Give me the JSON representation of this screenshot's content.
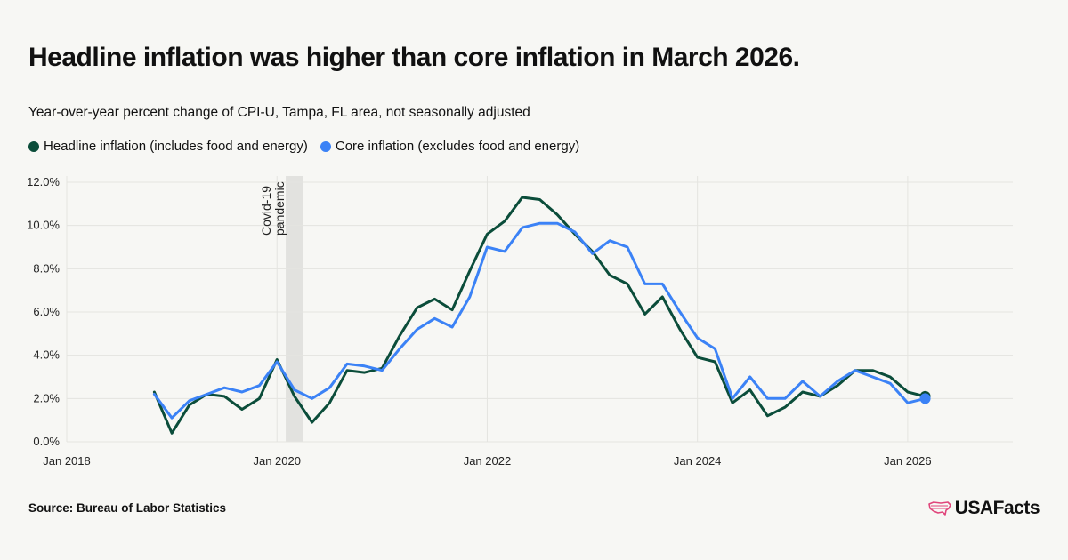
{
  "title": "Headline inflation was higher than core inflation in March 2026.",
  "subtitle": "Year-over-year percent change of CPI-U, Tampa, FL area, not seasonally adjusted",
  "source": "Source: Bureau of Labor Statistics",
  "logo_text": "USAFacts",
  "colors": {
    "headline": "#0b4d3a",
    "core": "#3b82f6",
    "grid": "#e4e4e0",
    "band": "#e2e2df",
    "axis_text": "#222222",
    "logo_icon": "#e0457b"
  },
  "chart_data": {
    "type": "line",
    "x_axis": {
      "type": "date",
      "range": [
        "2018-01",
        "2027-01"
      ],
      "ticks": [
        {
          "value": "2018-01",
          "label": "Jan 2018"
        },
        {
          "value": "2020-01",
          "label": "Jan 2020"
        },
        {
          "value": "2022-01",
          "label": "Jan 2022"
        },
        {
          "value": "2024-01",
          "label": "Jan 2024"
        },
        {
          "value": "2026-01",
          "label": "Jan 2026"
        }
      ]
    },
    "y_axis": {
      "range": [
        0,
        12
      ],
      "ticks": [
        {
          "value": 0,
          "label": "0.0%"
        },
        {
          "value": 2,
          "label": "2.0%"
        },
        {
          "value": 4,
          "label": "4.0%"
        },
        {
          "value": 6,
          "label": "6.0%"
        },
        {
          "value": 8,
          "label": "8.0%"
        },
        {
          "value": 10,
          "label": "10.0%"
        },
        {
          "value": 12,
          "label": "12.0%"
        }
      ]
    },
    "grid": true,
    "legend_placement": "top-left",
    "annotation": {
      "label_line1": "Covid-19",
      "label_line2": "pandemic",
      "band_start": "2020-02",
      "band_end": "2020-04"
    },
    "series": [
      {
        "name": "Headline inflation (includes food and energy)",
        "color": "#0b4d3a",
        "points": [
          [
            "2018-11",
            2.3
          ],
          [
            "2019-01",
            0.4
          ],
          [
            "2019-03",
            1.7
          ],
          [
            "2019-05",
            2.2
          ],
          [
            "2019-07",
            2.1
          ],
          [
            "2019-09",
            1.5
          ],
          [
            "2019-11",
            2.0
          ],
          [
            "2020-01",
            3.8
          ],
          [
            "2020-03",
            2.1
          ],
          [
            "2020-05",
            0.9
          ],
          [
            "2020-07",
            1.8
          ],
          [
            "2020-09",
            3.3
          ],
          [
            "2020-11",
            3.2
          ],
          [
            "2021-01",
            3.4
          ],
          [
            "2021-03",
            4.9
          ],
          [
            "2021-05",
            6.2
          ],
          [
            "2021-07",
            6.6
          ],
          [
            "2021-09",
            6.1
          ],
          [
            "2021-11",
            7.9
          ],
          [
            "2022-01",
            9.6
          ],
          [
            "2022-03",
            10.2
          ],
          [
            "2022-05",
            11.3
          ],
          [
            "2022-07",
            11.2
          ],
          [
            "2022-09",
            10.5
          ],
          [
            "2022-11",
            9.6
          ],
          [
            "2023-01",
            8.8
          ],
          [
            "2023-03",
            7.7
          ],
          [
            "2023-05",
            7.3
          ],
          [
            "2023-07",
            5.9
          ],
          [
            "2023-09",
            6.7
          ],
          [
            "2023-11",
            5.2
          ],
          [
            "2024-01",
            3.9
          ],
          [
            "2024-03",
            3.7
          ],
          [
            "2024-05",
            1.8
          ],
          [
            "2024-07",
            2.4
          ],
          [
            "2024-09",
            1.2
          ],
          [
            "2024-11",
            1.6
          ],
          [
            "2025-01",
            2.3
          ],
          [
            "2025-03",
            2.1
          ],
          [
            "2025-05",
            2.6
          ],
          [
            "2025-07",
            3.3
          ],
          [
            "2025-09",
            3.3
          ],
          [
            "2025-11",
            3.0
          ],
          [
            "2026-01",
            2.3
          ],
          [
            "2026-03",
            2.1
          ]
        ]
      },
      {
        "name": "Core inflation (excludes food and energy)",
        "color": "#3b82f6",
        "points": [
          [
            "2018-11",
            2.2
          ],
          [
            "2019-01",
            1.1
          ],
          [
            "2019-03",
            1.9
          ],
          [
            "2019-05",
            2.2
          ],
          [
            "2019-07",
            2.5
          ],
          [
            "2019-09",
            2.3
          ],
          [
            "2019-11",
            2.6
          ],
          [
            "2020-01",
            3.7
          ],
          [
            "2020-03",
            2.4
          ],
          [
            "2020-05",
            2.0
          ],
          [
            "2020-07",
            2.5
          ],
          [
            "2020-09",
            3.6
          ],
          [
            "2020-11",
            3.5
          ],
          [
            "2021-01",
            3.3
          ],
          [
            "2021-03",
            4.3
          ],
          [
            "2021-05",
            5.2
          ],
          [
            "2021-07",
            5.7
          ],
          [
            "2021-09",
            5.3
          ],
          [
            "2021-11",
            6.7
          ],
          [
            "2022-01",
            9.0
          ],
          [
            "2022-03",
            8.8
          ],
          [
            "2022-05",
            9.9
          ],
          [
            "2022-07",
            10.1
          ],
          [
            "2022-09",
            10.1
          ],
          [
            "2022-11",
            9.7
          ],
          [
            "2023-01",
            8.7
          ],
          [
            "2023-03",
            9.3
          ],
          [
            "2023-05",
            9.0
          ],
          [
            "2023-07",
            7.3
          ],
          [
            "2023-09",
            7.3
          ],
          [
            "2023-11",
            6.0
          ],
          [
            "2024-01",
            4.8
          ],
          [
            "2024-03",
            4.3
          ],
          [
            "2024-05",
            2.0
          ],
          [
            "2024-07",
            3.0
          ],
          [
            "2024-09",
            2.0
          ],
          [
            "2024-11",
            2.0
          ],
          [
            "2025-01",
            2.8
          ],
          [
            "2025-03",
            2.1
          ],
          [
            "2025-05",
            2.8
          ],
          [
            "2025-07",
            3.3
          ],
          [
            "2025-09",
            3.0
          ],
          [
            "2025-11",
            2.7
          ],
          [
            "2026-01",
            1.8
          ],
          [
            "2026-03",
            2.0
          ]
        ]
      }
    ]
  }
}
